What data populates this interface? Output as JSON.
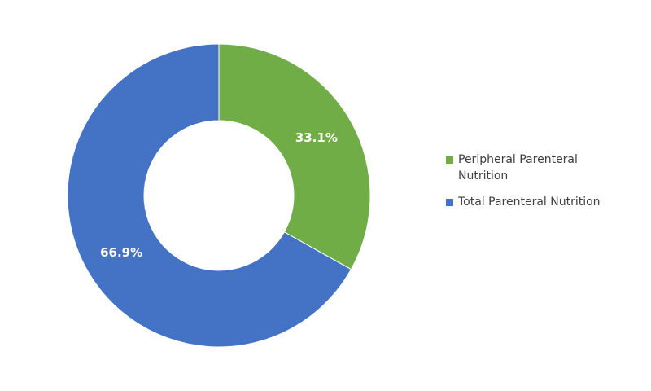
{
  "chart_data": {
    "type": "pie",
    "categories": [
      "Peripheral Parenteral Nutrition",
      "Total Parenteral Nutrition"
    ],
    "values": [
      33.1,
      66.9
    ],
    "value_labels": [
      "33.1%",
      "66.9%"
    ],
    "colors": [
      "#70ad47",
      "#4472c4"
    ],
    "donut": true,
    "legend": "right"
  }
}
